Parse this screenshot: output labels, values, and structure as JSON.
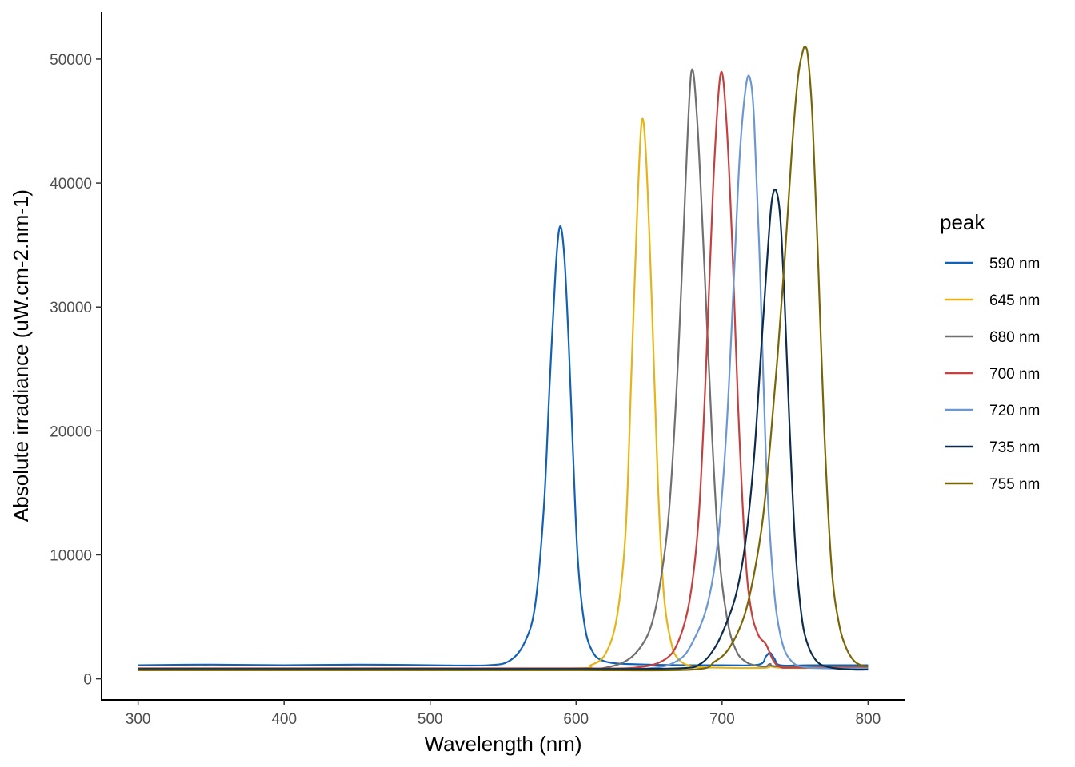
{
  "chart_data": {
    "type": "line",
    "xlabel": "Wavelength (nm)",
    "ylabel": "Absolute irradiance (uW.cm-2.nm-1)",
    "xlim": [
      275,
      825
    ],
    "ylim": [
      -1700,
      53800
    ],
    "x_ticks": [
      300,
      400,
      500,
      600,
      700,
      800
    ],
    "y_ticks": [
      0,
      10000,
      20000,
      30000,
      40000,
      50000
    ],
    "grid": false,
    "legend": {
      "title": "peak",
      "position": "right"
    },
    "series": [
      {
        "name": "590 nm",
        "color": "#1261b5",
        "x": [
          300,
          350,
          400,
          450,
          500,
          540,
          555,
          565,
          572,
          578,
          582,
          586,
          589,
          592,
          595,
          598,
          601,
          605,
          610,
          620,
          650,
          700,
          725,
          730,
          733,
          736,
          740,
          760,
          800
        ],
        "y": [
          1100,
          1150,
          1100,
          1150,
          1100,
          1100,
          1500,
          3000,
          6000,
          14000,
          24000,
          33000,
          36500,
          34000,
          27000,
          18000,
          10000,
          5000,
          2500,
          1400,
          1150,
          1100,
          1150,
          1800,
          2100,
          1600,
          1100,
          1100,
          1100
        ]
      },
      {
        "name": "645 nm",
        "color": "#e5b417",
        "x": [
          300,
          400,
          500,
          600,
          610,
          620,
          628,
          634,
          638,
          642,
          645,
          648,
          652,
          656,
          660,
          665,
          670,
          680,
          700,
          730,
          733,
          740,
          800
        ],
        "y": [
          850,
          850,
          850,
          850,
          1100,
          2000,
          5000,
          12000,
          25000,
          38000,
          45000,
          42000,
          30000,
          16000,
          7000,
          3000,
          1600,
          1000,
          900,
          900,
          1200,
          900,
          900
        ]
      },
      {
        "name": "680 nm",
        "color": "#707070",
        "x": [
          300,
          400,
          500,
          600,
          620,
          635,
          645,
          652,
          658,
          664,
          670,
          675,
          679,
          683,
          688,
          693,
          698,
          704,
          710,
          716,
          722,
          730,
          733,
          740,
          800
        ],
        "y": [
          800,
          800,
          800,
          800,
          900,
          1500,
          2700,
          4500,
          8000,
          14000,
          26000,
          40000,
          49000,
          45000,
          33000,
          20000,
          10000,
          4500,
          2200,
          1400,
          1100,
          1000,
          1200,
          1000,
          1000
        ]
      },
      {
        "name": "700 nm",
        "color": "#c6403f",
        "x": [
          300,
          400,
          500,
          600,
          640,
          660,
          670,
          678,
          684,
          689,
          694,
          699,
          703,
          707,
          711,
          716,
          720,
          725,
          730,
          735,
          740,
          750,
          800
        ],
        "y": [
          850,
          850,
          850,
          850,
          900,
          1500,
          3000,
          6500,
          13000,
          25000,
          40000,
          48800,
          45000,
          35000,
          22000,
          10000,
          5500,
          3500,
          2800,
          1500,
          950,
          900,
          900
        ]
      },
      {
        "name": "720 nm",
        "color": "#6c98d2",
        "x": [
          300,
          400,
          500,
          600,
          650,
          670,
          680,
          690,
          697,
          703,
          708,
          712,
          716,
          719,
          722,
          726,
          730,
          735,
          740,
          747,
          760,
          800
        ],
        "y": [
          800,
          800,
          800,
          800,
          850,
          1500,
          3000,
          6000,
          11000,
          20000,
          32000,
          42000,
          47500,
          48500,
          45000,
          33000,
          18000,
          8000,
          3500,
          1500,
          900,
          850
        ]
      },
      {
        "name": "735 nm",
        "color": "#0d2c4c",
        "x": [
          300,
          400,
          500,
          600,
          670,
          685,
          695,
          703,
          710,
          716,
          722,
          727,
          731,
          734,
          737,
          740,
          743,
          746,
          750,
          754,
          758,
          765,
          775,
          790,
          800
        ],
        "y": [
          800,
          800,
          800,
          800,
          850,
          1200,
          2500,
          4500,
          7000,
          11000,
          18000,
          27000,
          34000,
          38500,
          39400,
          37000,
          30000,
          21000,
          11000,
          5500,
          3000,
          1400,
          900,
          750,
          750
        ]
      },
      {
        "name": "755 nm",
        "color": "#7a6505",
        "x": [
          300,
          400,
          500,
          600,
          680,
          695,
          705,
          715,
          722,
          728,
          733,
          738,
          743,
          748,
          752,
          755,
          757,
          759,
          762,
          766,
          770,
          775,
          780,
          785,
          790,
          795,
          800
        ],
        "y": [
          700,
          700,
          700,
          700,
          750,
          1400,
          2500,
          5000,
          8500,
          13000,
          19000,
          26000,
          34000,
          43000,
          48500,
          50500,
          51000,
          50000,
          45000,
          33000,
          20000,
          9000,
          4500,
          2500,
          1500,
          1100,
          1000
        ]
      }
    ]
  }
}
